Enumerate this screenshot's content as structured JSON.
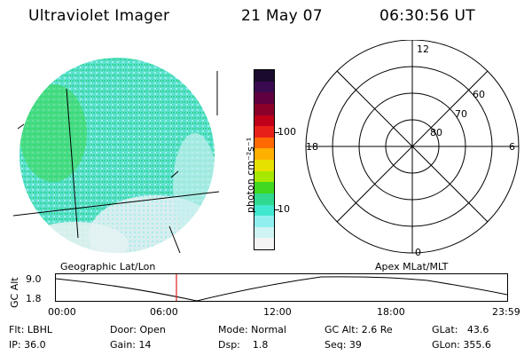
{
  "header": {
    "title": "Ultraviolet Imager",
    "date": "21 May 07",
    "time": "06:30:56 UT"
  },
  "colorbar": {
    "unit_label": "photon cm⁻²s⁻¹",
    "ticks": [
      "100",
      "10"
    ],
    "colors": [
      "#1a0a2e",
      "#3a0a50",
      "#600040",
      "#8b0028",
      "#c00018",
      "#e8201a",
      "#ff6a00",
      "#ffb000",
      "#e8e000",
      "#a8e800",
      "#40d820",
      "#30d890",
      "#40e8d0",
      "#90f0f0",
      "#d0f4f4",
      "#f4f4f4"
    ]
  },
  "polar_plot": {
    "mlt_labels": [
      "12",
      "18",
      "6",
      "0"
    ],
    "lat_labels": [
      "60",
      "70",
      "80"
    ]
  },
  "map_labels": {
    "left": "Geographic Lat/Lon",
    "right": "Apex MLat/MLT"
  },
  "altitude_panel": {
    "axis_label": "GC Alt",
    "y_ticks": [
      "9.0",
      "1.8"
    ],
    "x_ticks": [
      "00:00",
      "06:00",
      "12:00",
      "18:00",
      "23:59"
    ],
    "marker_time": "06:30:56"
  },
  "info": {
    "flt": "Flt: LBHL",
    "ip": "IP: 36.0",
    "door": "Door: Open",
    "gain": "Gain: 14",
    "mode": "Mode: Normal",
    "dsp": "Dsp:    1.8",
    "gcalt": "GC Alt: 2.6 Re",
    "seq": "Seq: 39",
    "glat": "GLat:   43.6",
    "glon": "GLon: 355.6"
  }
}
